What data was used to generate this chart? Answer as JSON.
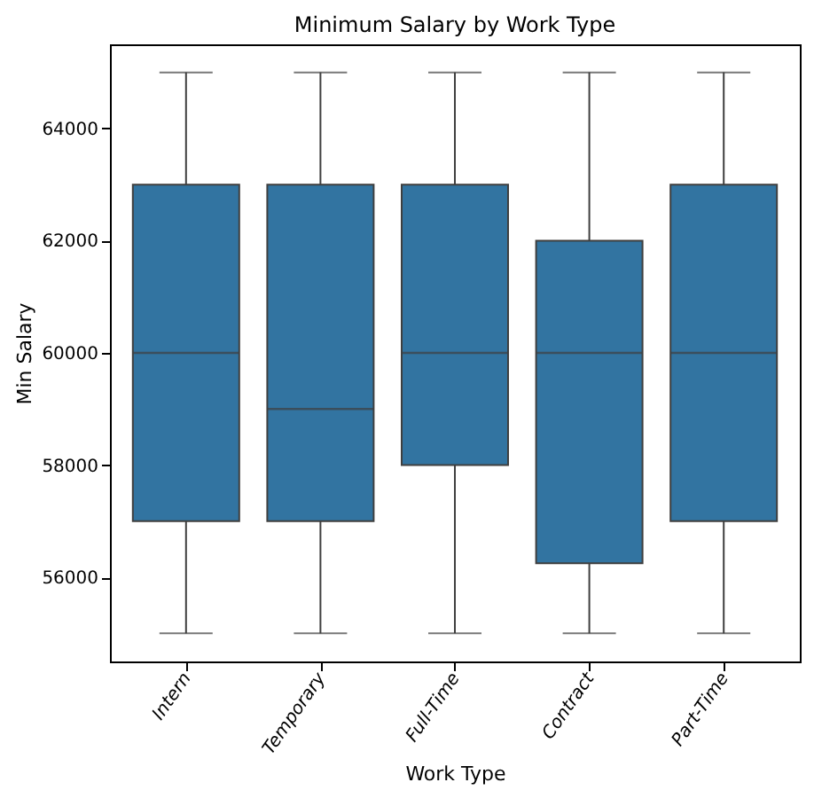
{
  "chart_data": {
    "type": "box",
    "title": "Minimum Salary by Work Type",
    "xlabel": "Work Type",
    "ylabel": "Min Salary",
    "categories": [
      "Intern",
      "Temporary",
      "Full-Time",
      "Contract",
      "Part-Time"
    ],
    "boxes": [
      {
        "low": 55000,
        "q1": 57000,
        "median": 60000,
        "q3": 63000,
        "high": 65000
      },
      {
        "low": 55000,
        "q1": 57000,
        "median": 59000,
        "q3": 63000,
        "high": 65000
      },
      {
        "low": 55000,
        "q1": 58000,
        "median": 60000,
        "q3": 63000,
        "high": 65000
      },
      {
        "low": 55000,
        "q1": 56250,
        "median": 60000,
        "q3": 62000,
        "high": 65000
      },
      {
        "low": 55000,
        "q1": 57000,
        "median": 60000,
        "q3": 63000,
        "high": 65000
      }
    ],
    "color": "#3274a1",
    "ylim": [
      54500,
      65500
    ],
    "yticks": [
      56000,
      58000,
      60000,
      62000,
      64000
    ],
    "grid": false
  }
}
